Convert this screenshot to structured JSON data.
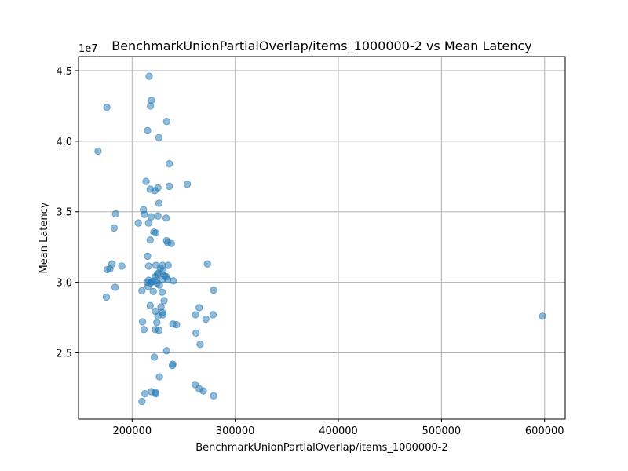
{
  "chart_data": {
    "type": "scatter",
    "title": "BenchmarkUnionPartialOverlap/items_1000000-2 vs Mean Latency",
    "xlabel": "BenchmarkUnionPartialOverlap/items_1000000-2",
    "ylabel": "Mean Latency",
    "y_offset_label": "1e7",
    "xlim": [
      148000,
      620000
    ],
    "ylim": [
      20300000,
      46000000
    ],
    "x_ticks": [
      200000,
      300000,
      400000,
      500000,
      600000
    ],
    "x_tick_labels": [
      "200000",
      "300000",
      "400000",
      "500000",
      "600000"
    ],
    "y_ticks": [
      25000000,
      30000000,
      35000000,
      40000000,
      45000000
    ],
    "y_tick_labels": [
      "2.5",
      "3.0",
      "3.5",
      "4.0",
      "4.5"
    ],
    "grid": true,
    "color": "#1f77b4",
    "points": [
      [
        216500,
        44600000
      ],
      [
        218800,
        42900000
      ],
      [
        175500,
        42400000
      ],
      [
        217800,
        42500000
      ],
      [
        233500,
        41400000
      ],
      [
        215000,
        40750000
      ],
      [
        226000,
        40250000
      ],
      [
        167000,
        39300000
      ],
      [
        236000,
        38400000
      ],
      [
        213500,
        37150000
      ],
      [
        253500,
        36950000
      ],
      [
        217500,
        36600000
      ],
      [
        222000,
        36500000
      ],
      [
        225000,
        36700000
      ],
      [
        236000,
        36800000
      ],
      [
        226000,
        35600000
      ],
      [
        184000,
        34850000
      ],
      [
        211000,
        35150000
      ],
      [
        212000,
        34800000
      ],
      [
        218500,
        34650000
      ],
      [
        225000,
        34700000
      ],
      [
        233000,
        34550000
      ],
      [
        206000,
        34200000
      ],
      [
        216000,
        34200000
      ],
      [
        182500,
        33850000
      ],
      [
        221000,
        33550000
      ],
      [
        223000,
        33500000
      ],
      [
        217500,
        33000000
      ],
      [
        233500,
        32950000
      ],
      [
        234500,
        32800000
      ],
      [
        238000,
        32750000
      ],
      [
        215000,
        31850000
      ],
      [
        180500,
        31300000
      ],
      [
        216000,
        31150000
      ],
      [
        223000,
        31200000
      ],
      [
        229500,
        31200000
      ],
      [
        235000,
        31200000
      ],
      [
        273000,
        31300000
      ],
      [
        190000,
        31150000
      ],
      [
        178500,
        30950000
      ],
      [
        176000,
        30900000
      ],
      [
        227500,
        31000000
      ],
      [
        230000,
        30800000
      ],
      [
        225500,
        30650000
      ],
      [
        222500,
        30400000
      ],
      [
        224500,
        30550000
      ],
      [
        231500,
        30450000
      ],
      [
        233000,
        30400000
      ],
      [
        229500,
        30200000
      ],
      [
        216000,
        30150000
      ],
      [
        219500,
        30050000
      ],
      [
        222000,
        30100000
      ],
      [
        214500,
        30000000
      ],
      [
        218000,
        29950000
      ],
      [
        224000,
        29950000
      ],
      [
        226500,
        29800000
      ],
      [
        240000,
        30100000
      ],
      [
        234500,
        30200000
      ],
      [
        215500,
        29700000
      ],
      [
        183500,
        29650000
      ],
      [
        209500,
        29400000
      ],
      [
        220500,
        29350000
      ],
      [
        229000,
        29300000
      ],
      [
        279000,
        29450000
      ],
      [
        175000,
        28950000
      ],
      [
        231000,
        28700000
      ],
      [
        217500,
        28350000
      ],
      [
        228000,
        28250000
      ],
      [
        265000,
        28200000
      ],
      [
        222500,
        27950000
      ],
      [
        229500,
        27850000
      ],
      [
        230000,
        27700000
      ],
      [
        225000,
        27600000
      ],
      [
        261500,
        27700000
      ],
      [
        271500,
        27400000
      ],
      [
        278500,
        27700000
      ],
      [
        210000,
        27200000
      ],
      [
        224000,
        27150000
      ],
      [
        239500,
        27050000
      ],
      [
        243000,
        27000000
      ],
      [
        598000,
        27600000
      ],
      [
        211500,
        26650000
      ],
      [
        222500,
        26650000
      ],
      [
        226000,
        26600000
      ],
      [
        262000,
        26400000
      ],
      [
        266000,
        25600000
      ],
      [
        233500,
        25150000
      ],
      [
        221500,
        24700000
      ],
      [
        239500,
        24200000
      ],
      [
        239000,
        24100000
      ],
      [
        226500,
        23300000
      ],
      [
        261000,
        22750000
      ],
      [
        265000,
        22450000
      ],
      [
        269000,
        22300000
      ],
      [
        218500,
        22250000
      ],
      [
        222500,
        22200000
      ],
      [
        223000,
        22100000
      ],
      [
        212500,
        22100000
      ],
      [
        279000,
        21950000
      ],
      [
        209500,
        21550000
      ]
    ]
  }
}
